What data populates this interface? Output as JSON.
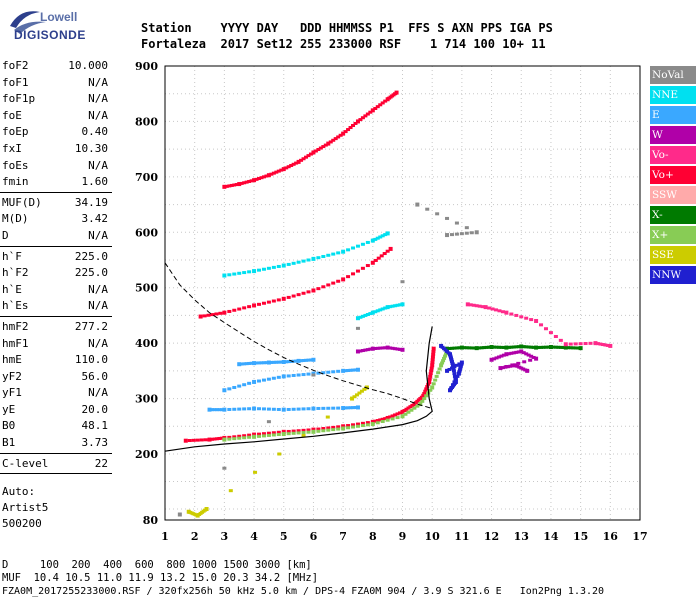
{
  "logo": {
    "line1": "Lowell",
    "line2": "DIGISONDE",
    "color_blue": "#2d3f8c",
    "color_light": "#5a6fa8"
  },
  "header": {
    "line1": "Station    YYYY DAY   DDD HHMMSS P1  FFS S AXN PPS IGA PS",
    "line2": "Fortaleza  2017 Set12 255 233000 RSF    1 714 100 10+ 11"
  },
  "params": [
    {
      "label": "foF2",
      "value": "10.000"
    },
    {
      "label": "foF1",
      "value": "N/A"
    },
    {
      "label": "foF1p",
      "value": "N/A"
    },
    {
      "label": "foE",
      "value": "N/A"
    },
    {
      "label": "foEp",
      "value": "0.40"
    },
    {
      "label": "fxI",
      "value": "10.30"
    },
    {
      "label": "foEs",
      "value": "N/A"
    },
    {
      "label": "fmin",
      "value": "1.60",
      "sep_after": true
    },
    {
      "label": "MUF(D)",
      "value": "34.19"
    },
    {
      "label": "M(D)",
      "value": "3.42"
    },
    {
      "label": "D",
      "value": "N/A",
      "sep_after": true
    },
    {
      "label": "h`F",
      "value": "225.0"
    },
    {
      "label": "h`F2",
      "value": "225.0"
    },
    {
      "label": "h`E",
      "value": "N/A"
    },
    {
      "label": "h`Es",
      "value": "N/A",
      "sep_after": true
    },
    {
      "label": "hmF2",
      "value": "277.2"
    },
    {
      "label": "hmF1",
      "value": "N/A"
    },
    {
      "label": "hmE",
      "value": "110.0"
    },
    {
      "label": "yF2",
      "value": "56.0"
    },
    {
      "label": "yF1",
      "value": "N/A"
    },
    {
      "label": "yE",
      "value": "20.0"
    },
    {
      "label": "B0",
      "value": "48.1"
    },
    {
      "label": "B1",
      "value": "3.73",
      "sep_after": true
    },
    {
      "label": "C-level",
      "value": "22",
      "sep_after": true
    }
  ],
  "auto": {
    "line1": "Auto:",
    "line2": "Artist5",
    "line3": "500200"
  },
  "legend": [
    {
      "label": "NoVal",
      "color": "#8a8a8a"
    },
    {
      "label": "NNE",
      "color": "#00e0f0"
    },
    {
      "label": "E",
      "color": "#3aa8ff"
    },
    {
      "label": "W",
      "color": "#b000a8"
    },
    {
      "label": "Vo-",
      "color": "#ff2a8a"
    },
    {
      "label": "Vo+",
      "color": "#ff0033"
    },
    {
      "label": "SSW",
      "color": "#ffaaaa"
    },
    {
      "label": "X-",
      "color": "#007a00"
    },
    {
      "label": "X+",
      "color": "#88cc55"
    },
    {
      "label": "SSE",
      "color": "#cccc00"
    },
    {
      "label": "NNW",
      "color": "#2020d0"
    }
  ],
  "footer": {
    "d_line": "D     100  200  400  600  800 1000 1500 3000 [km]",
    "muf_line": "MUF  10.4 10.5 11.0 11.9 13.2 15.0 20.3 34.2 [MHz]",
    "file_line": "FZA0M_2017255233000.RSF / 320fx256h 50 kHz 5.0 km / DPS-4 FZA0M 904 / 3.9 S 321.6 E   Ion2Png 1.3.20"
  },
  "chart_data": {
    "type": "scatter",
    "xlim": [
      1,
      17
    ],
    "ylim": [
      80,
      900
    ],
    "x_ticks": [
      1,
      2,
      3,
      4,
      5,
      6,
      7,
      8,
      9,
      10,
      11,
      12,
      13,
      14,
      15,
      16,
      17
    ],
    "y_ticks": [
      80,
      200,
      300,
      400,
      500,
      600,
      700,
      800,
      900
    ],
    "grid": true,
    "legend_position": "right",
    "dashed_profile": [
      [
        1,
        545
      ],
      [
        1.5,
        505
      ],
      [
        2,
        478
      ],
      [
        2.5,
        455
      ],
      [
        3,
        437
      ],
      [
        3.5,
        420
      ],
      [
        4,
        403
      ],
      [
        4.5,
        388
      ],
      [
        5,
        374
      ],
      [
        5.5,
        362
      ],
      [
        6,
        351
      ],
      [
        6.5,
        341
      ],
      [
        7,
        332
      ],
      [
        7.5,
        324
      ],
      [
        8,
        316
      ],
      [
        8.5,
        309
      ],
      [
        9,
        300
      ],
      [
        9.5,
        290
      ],
      [
        10,
        282
      ]
    ],
    "solid_profile": [
      [
        1,
        205
      ],
      [
        2,
        213
      ],
      [
        3,
        218
      ],
      [
        4,
        222
      ],
      [
        5,
        227
      ],
      [
        6,
        232
      ],
      [
        7,
        238
      ],
      [
        8,
        245
      ],
      [
        9,
        253
      ],
      [
        9.5,
        260
      ],
      [
        9.8,
        268
      ],
      [
        10,
        277
      ],
      [
        9.9,
        300
      ],
      [
        9.8,
        350
      ],
      [
        9.9,
        400
      ],
      [
        10,
        430
      ]
    ],
    "traces": [
      {
        "name": "O1 F-trace",
        "color": "#ff0033",
        "points": [
          [
            1.7,
            224
          ],
          [
            2.5,
            226
          ],
          [
            3,
            229
          ],
          [
            4,
            235
          ],
          [
            5,
            240
          ],
          [
            6,
            244
          ],
          [
            7,
            250
          ],
          [
            8,
            258
          ],
          [
            8.5,
            265
          ],
          [
            9,
            276
          ],
          [
            9.4,
            290
          ],
          [
            9.7,
            305
          ],
          [
            9.9,
            330
          ],
          [
            10,
            360
          ],
          [
            10.05,
            390
          ]
        ]
      },
      {
        "name": "X F-trace",
        "color": "#88cc55",
        "points": [
          [
            3,
            226
          ],
          [
            4,
            231
          ],
          [
            5,
            236
          ],
          [
            6,
            240
          ],
          [
            7,
            246
          ],
          [
            8,
            254
          ],
          [
            9,
            268
          ],
          [
            9.6,
            290
          ],
          [
            10,
            320
          ],
          [
            10.3,
            360
          ],
          [
            10.5,
            385
          ]
        ]
      },
      {
        "name": "2nd hop",
        "color": "#ff0033",
        "points": [
          [
            2.2,
            448
          ],
          [
            3,
            455
          ],
          [
            4,
            468
          ],
          [
            5,
            480
          ],
          [
            6,
            495
          ],
          [
            7,
            515
          ],
          [
            8,
            545
          ],
          [
            8.6,
            570
          ]
        ]
      },
      {
        "name": "3rd hop",
        "color": "#ff0033",
        "points": [
          [
            3,
            682
          ],
          [
            3.5,
            687
          ],
          [
            4,
            694
          ],
          [
            4.5,
            703
          ],
          [
            5,
            714
          ],
          [
            5.5,
            727
          ],
          [
            6,
            744
          ],
          [
            6.5,
            760
          ],
          [
            7,
            778
          ],
          [
            7.5,
            800
          ],
          [
            8,
            820
          ],
          [
            8.5,
            840
          ],
          [
            8.8,
            852
          ]
        ]
      },
      {
        "name": "E layer",
        "color": "#3aa8ff",
        "points": [
          [
            2.5,
            280
          ],
          [
            3,
            280
          ],
          [
            4,
            282
          ],
          [
            5,
            280
          ],
          [
            6,
            282
          ],
          [
            7,
            283
          ],
          [
            7.5,
            284
          ]
        ]
      },
      {
        "name": "E layer 2",
        "color": "#3aa8ff",
        "points": [
          [
            3,
            315
          ],
          [
            4,
            330
          ],
          [
            5,
            340
          ],
          [
            6,
            345
          ],
          [
            7,
            350
          ],
          [
            7.5,
            352
          ]
        ]
      },
      {
        "name": "Es blob",
        "color": "#3aa8ff",
        "points": [
          [
            3.5,
            362
          ],
          [
            4,
            364
          ],
          [
            4.5,
            365
          ],
          [
            5,
            366
          ],
          [
            5.5,
            368
          ],
          [
            6,
            370
          ]
        ]
      },
      {
        "name": "NNE hop",
        "color": "#00e0f0",
        "points": [
          [
            3,
            522
          ],
          [
            4,
            530
          ],
          [
            5,
            540
          ],
          [
            6,
            552
          ],
          [
            7,
            565
          ],
          [
            8,
            585
          ],
          [
            8.5,
            598
          ]
        ]
      },
      {
        "name": "NNE hop 2",
        "color": "#00e0f0",
        "points": [
          [
            7.5,
            445
          ],
          [
            8,
            455
          ],
          [
            8.5,
            465
          ],
          [
            9,
            470
          ]
        ]
      },
      {
        "name": "W spread",
        "color": "#b000a8",
        "points": [
          [
            12,
            370
          ],
          [
            12.5,
            380
          ],
          [
            13,
            385
          ],
          [
            13.5,
            372
          ],
          [
            12.3,
            355
          ],
          [
            12.8,
            360
          ],
          [
            13.2,
            350
          ]
        ]
      },
      {
        "name": "W 2",
        "color": "#b000a8",
        "points": [
          [
            7.5,
            385
          ],
          [
            8,
            390
          ],
          [
            8.5,
            392
          ],
          [
            9,
            388
          ]
        ]
      },
      {
        "name": "spread F",
        "color": "#007a00",
        "points": [
          [
            10.5,
            390
          ],
          [
            11,
            392
          ],
          [
            11.5,
            391
          ],
          [
            12,
            393
          ],
          [
            12.5,
            392
          ],
          [
            13,
            394
          ],
          [
            13.5,
            392
          ],
          [
            14,
            393
          ],
          [
            14.5,
            392
          ],
          [
            15,
            391
          ]
        ]
      },
      {
        "name": "NNW",
        "color": "#2020d0",
        "points": [
          [
            10.3,
            395
          ],
          [
            10.6,
            380
          ],
          [
            10.7,
            360
          ],
          [
            10.8,
            330
          ],
          [
            10.6,
            315
          ],
          [
            10.9,
            345
          ],
          [
            11,
            365
          ],
          [
            10.5,
            350
          ]
        ]
      },
      {
        "name": "Vo- scatter",
        "color": "#ff2a8a",
        "points": [
          [
            11.2,
            470
          ],
          [
            11.8,
            465
          ],
          [
            12.5,
            455
          ],
          [
            13.5,
            440
          ],
          [
            14.5,
            398
          ],
          [
            15.5,
            400
          ],
          [
            16,
            395
          ]
        ]
      },
      {
        "name": "SSE",
        "color": "#cccc00",
        "points": [
          [
            1.8,
            95
          ],
          [
            2.1,
            88
          ],
          [
            2.4,
            100
          ],
          [
            7.3,
            300
          ],
          [
            7.8,
            320
          ]
        ]
      },
      {
        "name": "NoVal",
        "color": "#8a8a8a",
        "points": [
          [
            1.5,
            90
          ],
          [
            10.5,
            595
          ],
          [
            11.5,
            600
          ],
          [
            9.5,
            650
          ]
        ]
      }
    ]
  }
}
